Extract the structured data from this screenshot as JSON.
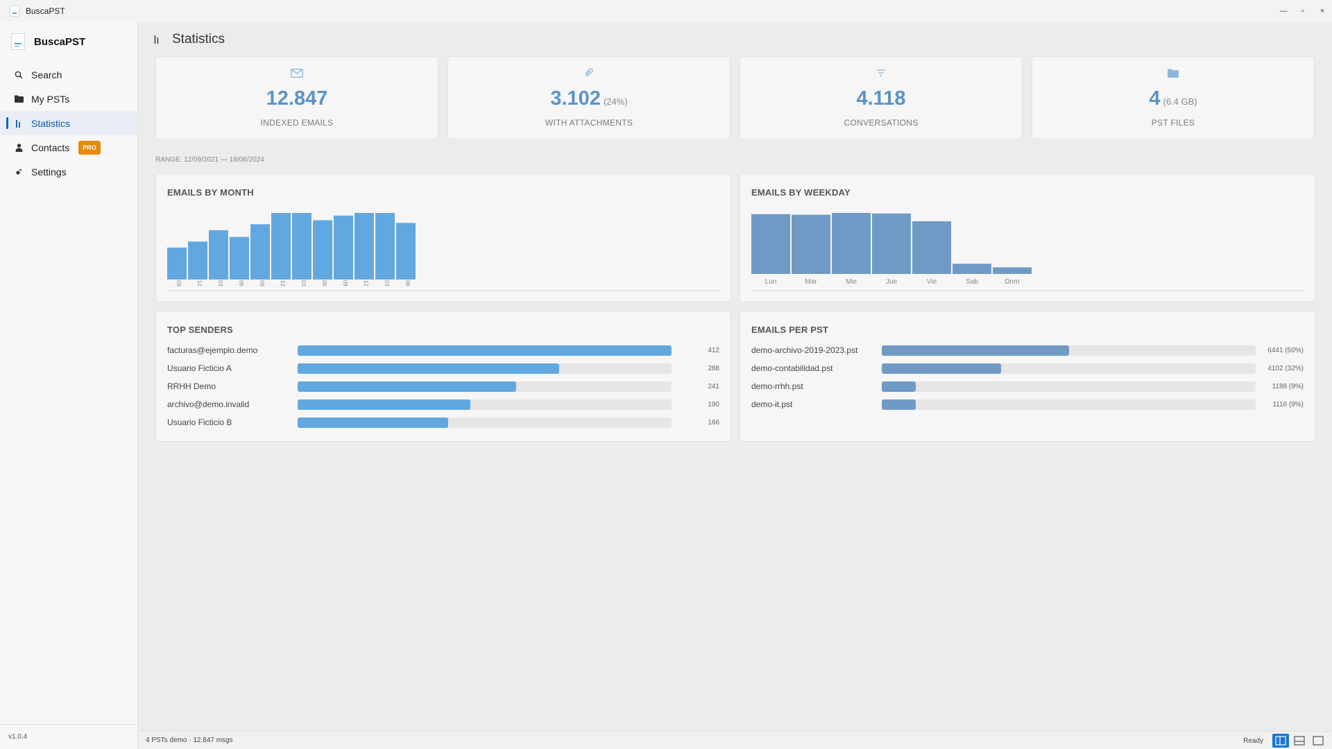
{
  "window": {
    "title": "BuscaPST",
    "minimize": "—",
    "maximize": "▫",
    "close": "×"
  },
  "sidebar": {
    "brand": "BuscaPST",
    "items": [
      {
        "label": "Search",
        "icon": "search-icon"
      },
      {
        "label": "My PSTs",
        "icon": "folder-icon"
      },
      {
        "label": "Statistics",
        "icon": "bar-chart-icon",
        "active": true
      },
      {
        "label": "Contacts",
        "icon": "person-icon",
        "badge": "PRO"
      },
      {
        "label": "Settings",
        "icon": "gear-icon"
      }
    ],
    "version": "v1.0.4"
  },
  "header": {
    "title": "Statistics"
  },
  "stats": [
    {
      "value": "12.847",
      "extra": "",
      "label": "INDEXED EMAILS",
      "icon": "envelope-icon"
    },
    {
      "value": "3.102",
      "extra": "(24%)",
      "label": "WITH ATTACHMENTS",
      "icon": "paperclip-icon"
    },
    {
      "value": "4.118",
      "extra": "",
      "label": "CONVERSATIONS",
      "icon": "filter-icon"
    },
    {
      "value": "4",
      "extra": "(6.4 GB)",
      "label": "PST FILES",
      "icon": "folder-icon"
    }
  ],
  "range": "RANGE: 12/09/2021 — 18/06/2024",
  "colors": {
    "accent": "#0a64c2",
    "bar_light": "#62a8e0",
    "bar_dark": "#6f9ac5",
    "stat_value": "#5a93c7",
    "badge": "#e8890c"
  },
  "chart_data": [
    {
      "type": "bar",
      "title": "EMAILS BY MONTH",
      "categories": [
        "-09",
        "-12",
        "-03",
        "-06",
        "-09",
        "-12",
        "-03",
        "-06",
        "-09",
        "-12",
        "-03",
        "-06"
      ],
      "values": [
        48,
        57,
        74,
        64,
        83,
        100,
        100,
        89,
        96,
        100,
        100,
        85
      ],
      "ylim": [
        0,
        100
      ],
      "grid": false
    },
    {
      "type": "bar",
      "title": "EMAILS BY WEEKDAY",
      "categories": [
        "Lun",
        "Mar",
        "Mie",
        "Jue",
        "Vie",
        "Sab",
        "Dom"
      ],
      "values": [
        100,
        99,
        102,
        101,
        88,
        17,
        11
      ],
      "ylim": [
        0,
        102
      ],
      "grid": false
    }
  ],
  "top_senders": {
    "title": "TOP SENDERS",
    "rows": [
      {
        "label": "facturas@ejemplo.demo",
        "count": "412",
        "value": 412
      },
      {
        "label": "Usuario Ficticio A",
        "count": "288",
        "value": 288
      },
      {
        "label": "RRHH Demo",
        "count": "241",
        "value": 241
      },
      {
        "label": "archivo@demo.invalid",
        "count": "190",
        "value": 190
      },
      {
        "label": "Usuario Ficticio B",
        "count": "166",
        "value": 166
      }
    ],
    "max": 412
  },
  "emails_per_pst": {
    "title": "EMAILS PER PST",
    "rows": [
      {
        "label": "demo-archivo-2019-2023.pst",
        "count": "6441 (50%)",
        "fraction": 0.5
      },
      {
        "label": "demo-contabilidad.pst",
        "count": "4102 (32%)",
        "fraction": 0.32
      },
      {
        "label": "demo-rrhh.pst",
        "count": "1188 (9%)",
        "fraction": 0.09
      },
      {
        "label": "demo-it.pst",
        "count": "1116 (9%)",
        "fraction": 0.09
      }
    ]
  },
  "statusbar": {
    "left": "4 PSTs demo · 12.847 msgs",
    "ready": "Ready"
  }
}
